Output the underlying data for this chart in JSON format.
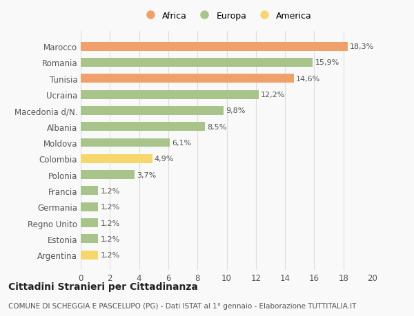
{
  "categories": [
    "Argentina",
    "Estonia",
    "Regno Unito",
    "Germania",
    "Francia",
    "Polonia",
    "Colombia",
    "Moldova",
    "Albania",
    "Macedonia d/N.",
    "Ucraina",
    "Tunisia",
    "Romania",
    "Marocco"
  ],
  "values": [
    1.2,
    1.2,
    1.2,
    1.2,
    1.2,
    3.7,
    4.9,
    6.1,
    8.5,
    9.8,
    12.2,
    14.6,
    15.9,
    18.3
  ],
  "labels": [
    "1,2%",
    "1,2%",
    "1,2%",
    "1,2%",
    "1,2%",
    "3,7%",
    "4,9%",
    "6,1%",
    "8,5%",
    "9,8%",
    "12,2%",
    "14,6%",
    "15,9%",
    "18,3%"
  ],
  "colors": [
    "#f5d76e",
    "#a8c48a",
    "#a8c48a",
    "#a8c48a",
    "#a8c48a",
    "#a8c48a",
    "#f5d76e",
    "#a8c48a",
    "#a8c48a",
    "#a8c48a",
    "#a8c48a",
    "#f0a06a",
    "#a8c48a",
    "#f0a06a"
  ],
  "legend": [
    {
      "label": "Africa",
      "color": "#f0a06a"
    },
    {
      "label": "Europa",
      "color": "#a8c48a"
    },
    {
      "label": "America",
      "color": "#f5d76e"
    }
  ],
  "title": "Cittadini Stranieri per Cittadinanza",
  "subtitle": "COMUNE DI SCHEGGIA E PASCELUPO (PG) - Dati ISTAT al 1° gennaio - Elaborazione TUTTITALIA.IT",
  "xlim": [
    0,
    20
  ],
  "xticks": [
    0,
    2,
    4,
    6,
    8,
    10,
    12,
    14,
    16,
    18,
    20
  ],
  "background_color": "#f9f9f9",
  "bar_height": 0.55,
  "label_fontsize": 8,
  "title_fontsize": 10,
  "subtitle_fontsize": 7.5,
  "ytick_fontsize": 8.5,
  "xtick_fontsize": 8.5,
  "legend_fontsize": 9
}
